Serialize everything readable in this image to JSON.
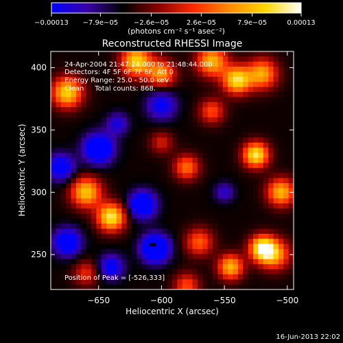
{
  "chart_data": {
    "type": "heatmap",
    "title": "Reconstructed RHESSI Image",
    "xlabel": "Heliocentric X (arcsec)",
    "ylabel": "Heliocentric Y (arcsec)",
    "xlim": [
      -688,
      -495
    ],
    "ylim": [
      222,
      413
    ],
    "xticks": [
      -650,
      -600,
      -550,
      -500
    ],
    "xtick_labels": [
      "−650",
      "−600",
      "−550",
      "−500"
    ],
    "yticks": [
      250,
      300,
      350,
      400
    ],
    "ytick_labels": [
      "250",
      "300",
      "350",
      "400"
    ],
    "colorbar": {
      "min": -0.00013,
      "max": 0.00013,
      "tick_values": [
        -0.00013,
        -7.9e-05,
        -2.6e-05,
        2.6e-05,
        7.9e-05,
        0.00013
      ],
      "tick_labels": [
        "−0.00013",
        "−7.9e−05",
        "−2.6e−05",
        "2.6e−05",
        "7.9e−05",
        "0.00013"
      ],
      "units": "(photons cm⁻² s⁻¹ asec⁻²)",
      "colors": [
        "#0000ff",
        "#3a00a8",
        "#000000",
        "#8a0000",
        "#ff2a00",
        "#ff8c00",
        "#ffd700",
        "#ffffff"
      ]
    },
    "info_lines": [
      "24-Apr-2004 21:47:24.000 to 21:48:44.000",
      "Detectors: 4F 5F 6F 7F 8F, Att 0",
      "Energy Range: 25.0 - 50.0 keV",
      "Clean     Total counts: 868."
    ],
    "peak_label": "Position of Peak = [-526,333]",
    "peak": [
      -526,
      333
    ],
    "blobs": [
      [
        -675,
        380,
        0.9,
        12
      ],
      [
        -660,
        300,
        0.85,
        12
      ],
      [
        -640,
        280,
        1.0,
        11
      ],
      [
        -620,
        405,
        0.9,
        12
      ],
      [
        -600,
        395,
        0.7,
        11
      ],
      [
        -560,
        405,
        0.8,
        12
      ],
      [
        -540,
        390,
        0.95,
        11
      ],
      [
        -520,
        395,
        0.75,
        12
      ],
      [
        -525,
        330,
        1.0,
        10
      ],
      [
        -505,
        300,
        0.8,
        11
      ],
      [
        -520,
        255,
        1.0,
        10
      ],
      [
        -545,
        240,
        0.8,
        10
      ],
      [
        -510,
        250,
        0.7,
        12
      ],
      [
        -580,
        320,
        0.6,
        10
      ],
      [
        -570,
        260,
        0.55,
        11
      ],
      [
        -600,
        340,
        0.35,
        9
      ],
      [
        -580,
        225,
        0.5,
        10
      ],
      [
        -660,
        235,
        0.4,
        10
      ],
      [
        -560,
        365,
        0.5,
        10
      ],
      [
        -605,
        255,
        -0.95,
        11
      ],
      [
        -615,
        290,
        -0.75,
        11
      ],
      [
        -650,
        335,
        -0.8,
        12
      ],
      [
        -680,
        320,
        -0.6,
        11
      ],
      [
        -600,
        370,
        -0.5,
        12
      ],
      [
        -675,
        260,
        -0.7,
        11
      ],
      [
        -640,
        240,
        -0.55,
        10
      ],
      [
        -550,
        300,
        -0.35,
        8
      ],
      [
        -635,
        355,
        -0.4,
        9
      ]
    ]
  },
  "footer": {
    "timestamp": "16-Jun-2013 22:02"
  }
}
